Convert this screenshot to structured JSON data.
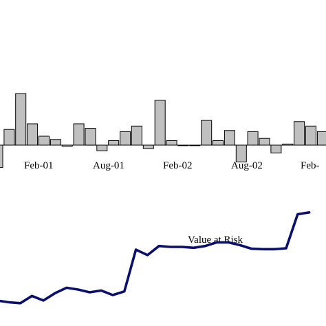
{
  "chart_data": [
    {
      "type": "bar",
      "colors": {
        "bar_fill": "#c0c0c0",
        "bar_stroke": "#000000",
        "axis": "#000000"
      },
      "x_tick_labels": [
        "Feb-01",
        "Aug-01",
        "Feb-02",
        "Aug-02",
        "Feb-"
      ],
      "values": [
        -2.0,
        1.4,
        4.6,
        1.9,
        0.8,
        0.5,
        -0.1,
        1.9,
        1.5,
        -0.5,
        0.4,
        1.2,
        1.7,
        -0.3,
        4.0,
        0.4,
        0.0,
        0.0,
        2.2,
        0.4,
        1.3,
        -1.5,
        1.2,
        0.6,
        -0.7,
        0.1,
        2.1,
        1.7,
        1.2
      ],
      "ylim": [
        -2.0,
        5.0
      ]
    },
    {
      "type": "line",
      "annotation": "Value at Risk",
      "colors": {
        "line": "#0a0f6e"
      },
      "values": [
        3.2,
        2.8,
        2.6,
        4.2,
        3.2,
        4.8,
        6.0,
        5.6,
        5.0,
        5.4,
        4.4,
        5.2,
        14.4,
        13.2,
        15.2,
        15.0,
        15.0,
        14.8,
        15.2,
        16.0,
        16.0,
        15.4,
        14.6,
        14.5,
        14.5,
        14.7,
        22.2,
        22.6
      ],
      "ylim": [
        0,
        30
      ]
    }
  ]
}
